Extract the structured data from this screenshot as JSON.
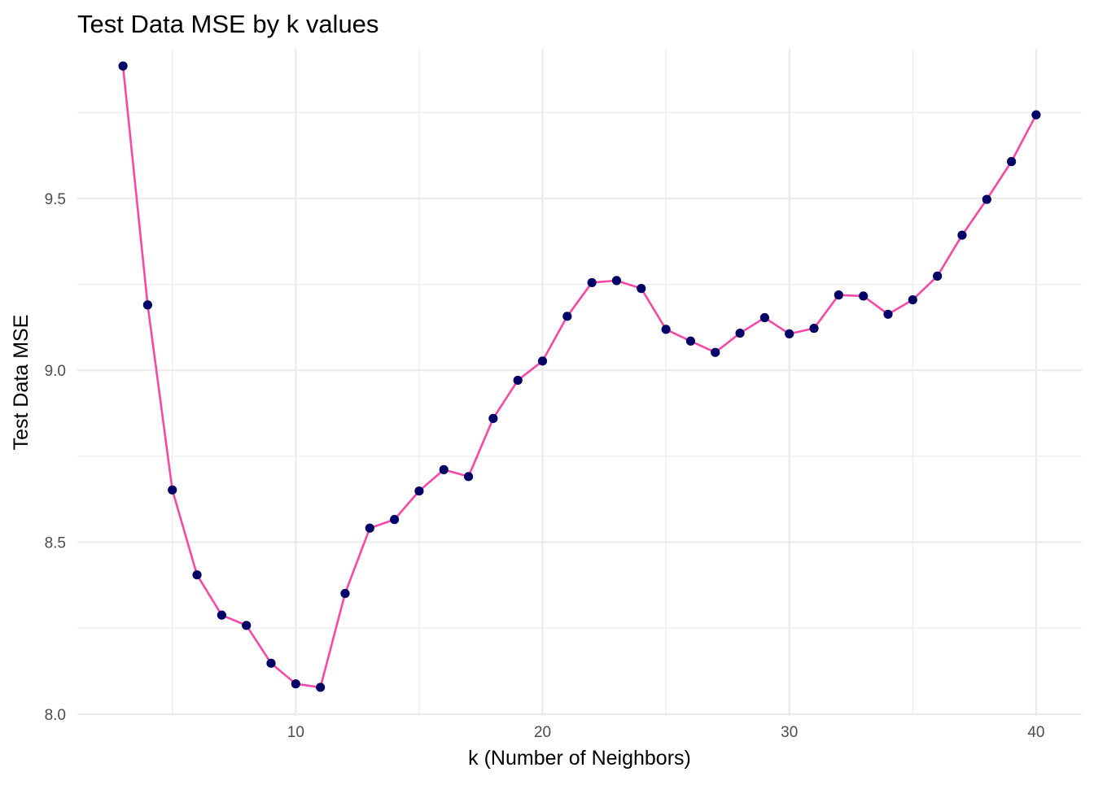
{
  "chart_data": {
    "type": "line",
    "title": "Test Data MSE by k values",
    "xlabel": "k (Number of Neighbors)",
    "ylabel": "Test Data MSE",
    "xlim": [
      1.15,
      41.85
    ],
    "ylim": [
      7.995,
      9.935
    ],
    "x_ticks": [
      10,
      20,
      30,
      40
    ],
    "x_tick_labels": [
      "10",
      "20",
      "30",
      "40"
    ],
    "x_minor_ticks": [
      5,
      15,
      25,
      35
    ],
    "y_ticks": [
      8.0,
      8.5,
      9.0,
      9.5
    ],
    "y_tick_labels": [
      "8.0",
      "8.5",
      "9.0",
      "9.5"
    ],
    "y_minor_ticks": [
      8.25,
      8.75,
      9.25,
      9.75
    ],
    "grid": true,
    "legend": "none",
    "colors": {
      "line": "#f748a5",
      "points": "#000066",
      "grid": "#ebebeb"
    },
    "series": [
      {
        "x": [
          3,
          4,
          5,
          6,
          7,
          8,
          9,
          10,
          11,
          12,
          13,
          14,
          15,
          16,
          17,
          18,
          19,
          20,
          21,
          22,
          23,
          24,
          25,
          26,
          27,
          28,
          29,
          30,
          31,
          32,
          33,
          34,
          35,
          36,
          37,
          38,
          39,
          40
        ],
        "values": [
          9.885,
          9.19,
          8.652,
          8.405,
          8.288,
          8.258,
          8.148,
          8.088,
          8.078,
          8.351,
          8.541,
          8.566,
          8.649,
          8.711,
          8.691,
          8.86,
          8.971,
          9.027,
          9.157,
          9.255,
          9.261,
          9.238,
          9.119,
          9.085,
          9.052,
          9.108,
          9.153,
          9.106,
          9.122,
          9.219,
          9.216,
          9.163,
          9.205,
          9.274,
          9.393,
          9.497,
          9.607,
          9.743
        ]
      }
    ]
  }
}
